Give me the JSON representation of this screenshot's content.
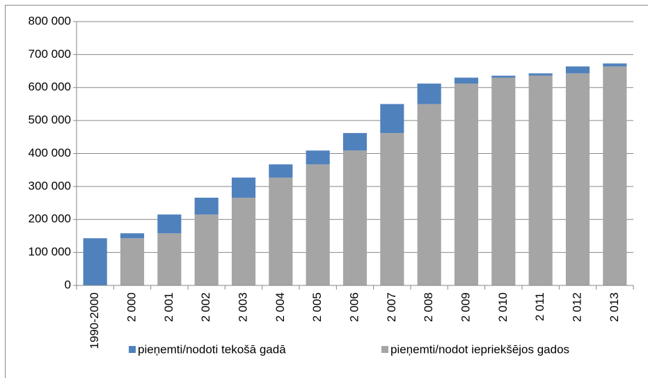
{
  "chart_data": {
    "type": "stacked_bar",
    "categories": [
      "1990-2000",
      "2 000",
      "2 001",
      "2 002",
      "2 003",
      "2 004",
      "2 005",
      "2 006",
      "2 007",
      "2 008",
      "2 009",
      "2 010",
      "2 011",
      "2 012",
      "2 013"
    ],
    "series": [
      {
        "name": "pieņemti/nodot iepriekšējos gados",
        "color": "#a5a5a5",
        "values": [
          0,
          143000,
          158000,
          215000,
          266000,
          327000,
          367000,
          409000,
          462000,
          550000,
          612000,
          630000,
          636000,
          643000,
          664000
        ]
      },
      {
        "name": "pieņemti/nodoti tekošā  gadā",
        "color": "#4f81bd",
        "values": [
          143000,
          15000,
          57000,
          51000,
          61000,
          40000,
          42000,
          53000,
          88000,
          62000,
          18000,
          6000,
          7000,
          21000,
          9000
        ]
      }
    ],
    "ylim": [
      0,
      800000
    ],
    "yticks": [
      0,
      {
        "value": 100000,
        "label": "100 000"
      },
      {
        "value": 200000,
        "label": "200 000"
      },
      {
        "value": 300000,
        "label": "300 000"
      },
      {
        "value": 400000,
        "label": "400 000"
      },
      {
        "value": 500000,
        "label": "500 000"
      },
      {
        "value": 600000,
        "label": "600 000"
      },
      {
        "value": 700000,
        "label": "700 000"
      },
      {
        "value": 800000,
        "label": "800 000"
      }
    ],
    "grid": true,
    "legend": "bottom"
  }
}
